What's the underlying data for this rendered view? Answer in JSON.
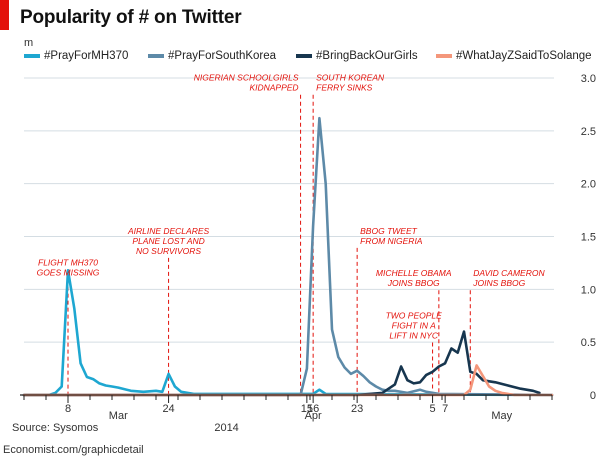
{
  "header": {
    "title": "Popularity of # on Twitter",
    "unit": "m",
    "accent": "#e3120b"
  },
  "footer": {
    "source": "Source: Sysomos",
    "url": "Economist.com/graphicdetail"
  },
  "chart_data": {
    "type": "line",
    "title": "Popularity of # on Twitter",
    "ylabel": "m",
    "xlabel": "2014",
    "ylim": [
      0,
      3.0
    ],
    "y_ticks": [
      0,
      0.5,
      1.0,
      1.5,
      2.0,
      2.5,
      3.0
    ],
    "y_tick_labels": [
      "0",
      "0.5",
      "1.0",
      "1.5",
      "2.0",
      "2.5",
      "3.0"
    ],
    "y_axis_position": "right",
    "grid": true,
    "legend": "top",
    "x_range": [
      "2014-03-01",
      "2014-05-24"
    ],
    "x_tick_labels": [
      {
        "date": "2014-03-08",
        "label": "8"
      },
      {
        "date": "2014-03-24",
        "label": "24"
      },
      {
        "date": "2014-04-15",
        "label": "15"
      },
      {
        "date": "2014-04-16",
        "label": "16"
      },
      {
        "date": "2014-04-23",
        "label": "23"
      },
      {
        "date": "2014-05-05",
        "label": "5"
      },
      {
        "date": "2014-05-07",
        "label": "7"
      }
    ],
    "month_labels": [
      {
        "date": "2014-03-16",
        "label": "Mar"
      },
      {
        "date": "2014-04-16",
        "label": "Apr"
      },
      {
        "date": "2014-05-16",
        "label": "May"
      }
    ],
    "year_label": {
      "date": "2014-04-07",
      "label": "2014"
    },
    "series": [
      {
        "name": "#PrayForMH370",
        "color": "#1ea7d1",
        "points": [
          [
            "2014-03-01",
            0
          ],
          [
            "2014-03-05",
            0
          ],
          [
            "2014-03-06",
            0.02
          ],
          [
            "2014-03-07",
            0.08
          ],
          [
            "2014-03-08",
            1.18
          ],
          [
            "2014-03-09",
            0.82
          ],
          [
            "2014-03-10",
            0.3
          ],
          [
            "2014-03-11",
            0.17
          ],
          [
            "2014-03-12",
            0.15
          ],
          [
            "2014-03-13",
            0.11
          ],
          [
            "2014-03-14",
            0.09
          ],
          [
            "2014-03-15",
            0.08
          ],
          [
            "2014-03-16",
            0.07
          ],
          [
            "2014-03-18",
            0.04
          ],
          [
            "2014-03-20",
            0.03
          ],
          [
            "2014-03-22",
            0.04
          ],
          [
            "2014-03-23",
            0.03
          ],
          [
            "2014-03-24",
            0.2
          ],
          [
            "2014-03-25",
            0.08
          ],
          [
            "2014-03-26",
            0.03
          ],
          [
            "2014-03-28",
            0.01
          ],
          [
            "2014-04-05",
            0.01
          ],
          [
            "2014-04-14",
            0.01
          ],
          [
            "2014-04-16",
            0.01
          ],
          [
            "2014-04-17",
            0.05
          ],
          [
            "2014-04-18",
            0.01
          ],
          [
            "2014-05-24",
            0.0
          ]
        ]
      },
      {
        "name": "#PrayForSouthKorea",
        "color": "#5d8aa8",
        "points": [
          [
            "2014-03-01",
            0
          ],
          [
            "2014-04-14",
            0
          ],
          [
            "2014-04-15",
            0.25
          ],
          [
            "2014-04-16",
            1.6
          ],
          [
            "2014-04-17",
            2.62
          ],
          [
            "2014-04-18",
            2.0
          ],
          [
            "2014-04-19",
            0.62
          ],
          [
            "2014-04-20",
            0.36
          ],
          [
            "2014-04-21",
            0.26
          ],
          [
            "2014-04-22",
            0.2
          ],
          [
            "2014-04-23",
            0.23
          ],
          [
            "2014-04-24",
            0.18
          ],
          [
            "2014-04-25",
            0.12
          ],
          [
            "2014-04-26",
            0.08
          ],
          [
            "2014-04-27",
            0.05
          ],
          [
            "2014-04-28",
            0.04
          ],
          [
            "2014-04-29",
            0.04
          ],
          [
            "2014-05-01",
            0.02
          ],
          [
            "2014-05-03",
            0.05
          ],
          [
            "2014-05-04",
            0.03
          ],
          [
            "2014-05-06",
            0.01
          ],
          [
            "2014-05-24",
            0.0
          ]
        ]
      },
      {
        "name": "#BringBackOurGirls",
        "color": "#17364f",
        "points": [
          [
            "2014-03-01",
            0
          ],
          [
            "2014-04-23",
            0
          ],
          [
            "2014-04-25",
            0.01
          ],
          [
            "2014-04-27",
            0.02
          ],
          [
            "2014-04-29",
            0.1
          ],
          [
            "2014-04-30",
            0.27
          ],
          [
            "2014-05-01",
            0.14
          ],
          [
            "2014-05-02",
            0.11
          ],
          [
            "2014-05-03",
            0.12
          ],
          [
            "2014-05-04",
            0.19
          ],
          [
            "2014-05-05",
            0.22
          ],
          [
            "2014-05-06",
            0.27
          ],
          [
            "2014-05-07",
            0.3
          ],
          [
            "2014-05-08",
            0.44
          ],
          [
            "2014-05-09",
            0.4
          ],
          [
            "2014-05-10",
            0.6
          ],
          [
            "2014-05-11",
            0.22
          ],
          [
            "2014-05-12",
            0.2
          ],
          [
            "2014-05-13",
            0.14
          ],
          [
            "2014-05-14",
            0.13
          ],
          [
            "2014-05-15",
            0.12
          ],
          [
            "2014-05-17",
            0.09
          ],
          [
            "2014-05-19",
            0.06
          ],
          [
            "2014-05-21",
            0.04
          ],
          [
            "2014-05-22",
            0.02
          ]
        ]
      },
      {
        "name": "#WhatJayZSaidToSolange",
        "color": "#f4977b",
        "points": [
          [
            "2014-03-01",
            0
          ],
          [
            "2014-05-10",
            0
          ],
          [
            "2014-05-11",
            0.05
          ],
          [
            "2014-05-12",
            0.28
          ],
          [
            "2014-05-13",
            0.18
          ],
          [
            "2014-05-14",
            0.08
          ],
          [
            "2014-05-15",
            0.04
          ],
          [
            "2014-05-16",
            0.02
          ],
          [
            "2014-05-18",
            0.0
          ],
          [
            "2014-05-24",
            0.0
          ]
        ]
      }
    ],
    "annotations": [
      {
        "date": "2014-03-08",
        "lines": [
          "FLIGHT MH370",
          "GOES MISSING"
        ],
        "anchor": "middle",
        "label_date": "2014-03-08",
        "label_y": 1.3
      },
      {
        "date": "2014-03-24",
        "lines": [
          "AIRLINE DECLARES",
          "PLANE LOST AND",
          "NO SURVIVORS"
        ],
        "anchor": "middle",
        "label_date": "2014-03-24",
        "label_y": 1.6
      },
      {
        "date": "2014-04-14",
        "lines": [
          "NIGERIAN SCHOOLGIRLS",
          "KIDNAPPED"
        ],
        "anchor": "end",
        "label_date": "2014-04-14",
        "label_y": 3.05
      },
      {
        "date": "2014-04-16",
        "lines": [
          "SOUTH KOREAN",
          "FERRY SINKS"
        ],
        "anchor": "start",
        "label_date": "2014-04-16",
        "label_y": 3.05
      },
      {
        "date": "2014-04-23",
        "lines": [
          "BBOG TWEET",
          "FROM NIGERIA"
        ],
        "anchor": "start",
        "label_date": "2014-04-23",
        "label_y": 1.6
      },
      {
        "date": "2014-05-06",
        "lines": [
          "MICHELLE OBAMA",
          "JOINS BBOG"
        ],
        "anchor": "middle",
        "label_date": "2014-05-02",
        "label_y": 1.2
      },
      {
        "date": "2014-05-05",
        "lines": [
          "TWO PEOPLE",
          "FIGHT IN A",
          "LIFT IN NYC"
        ],
        "anchor": "middle",
        "label_date": "2014-05-02",
        "label_y": 0.8
      },
      {
        "date": "2014-05-11",
        "lines": [
          "DAVID CAMERON",
          "JOINS BBOG"
        ],
        "anchor": "start",
        "label_date": "2014-05-11",
        "label_y": 1.2
      }
    ]
  }
}
